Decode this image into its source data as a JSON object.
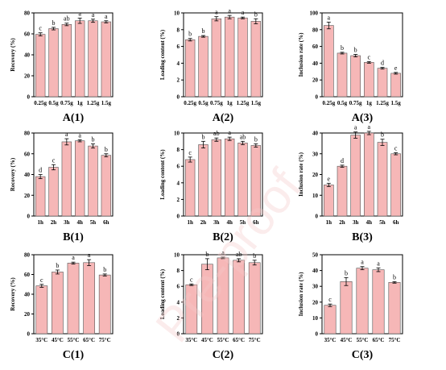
{
  "style": {
    "bar_fill": "#f6b7b7",
    "bar_stroke": "#555555"
  },
  "watermark": "Pre-proof",
  "chart_data": [
    {
      "id": "A1",
      "type": "bar",
      "panel_label": "A(1)",
      "ylabel": "Recovery (%)",
      "ylim": [
        0,
        80
      ],
      "yticks": [
        0,
        20,
        40,
        60,
        80
      ],
      "categories": [
        "0.25g",
        "0.5g",
        "0.75g",
        "1g",
        "1.25g",
        "1.5g"
      ],
      "values": [
        59.5,
        65,
        69,
        72.5,
        72.5,
        71.5
      ],
      "errors": [
        1.5,
        1.2,
        1.2,
        2.5,
        1.5,
        1
      ],
      "letters": [
        "c",
        "b",
        "ab",
        "a",
        "a",
        "a"
      ]
    },
    {
      "id": "A2",
      "type": "bar",
      "panel_label": "A(2)",
      "ylabel": "Loading content (%)",
      "ylim": [
        0,
        10
      ],
      "yticks": [
        0,
        2,
        4,
        6,
        8,
        10
      ],
      "categories": [
        "0.25g",
        "0.5g",
        "0.75g",
        "1g",
        "1.25g",
        "1.5g"
      ],
      "values": [
        6.8,
        7.2,
        9.3,
        9.5,
        9.4,
        9.0
      ],
      "errors": [
        0.15,
        0.1,
        0.25,
        0.2,
        0.1,
        0.3
      ],
      "letters": [
        "b",
        "b",
        "a",
        "a",
        "a",
        "b"
      ]
    },
    {
      "id": "A3",
      "type": "bar",
      "panel_label": "A(3)",
      "ylabel": "Inclusion rate (%)",
      "ylim": [
        0,
        100
      ],
      "yticks": [
        0,
        20,
        40,
        60,
        80,
        100
      ],
      "categories": [
        "0.25g",
        "0.5g",
        "0.75g",
        "1g",
        "1.25g",
        "1.5g"
      ],
      "values": [
        85,
        52,
        49,
        41,
        34,
        28
      ],
      "errors": [
        4,
        1,
        1.5,
        1,
        1,
        1
      ],
      "letters": [
        "a",
        "b",
        "b",
        "c",
        "d",
        "e"
      ]
    },
    {
      "id": "B1",
      "type": "bar",
      "panel_label": "B(1)",
      "ylabel": "Recovery (%)",
      "ylim": [
        0,
        80
      ],
      "yticks": [
        0,
        20,
        40,
        60,
        80
      ],
      "categories": [
        "1h",
        "2h",
        "3h",
        "4h",
        "5h",
        "6h"
      ],
      "values": [
        38,
        47,
        71.5,
        72.5,
        67.5,
        58.5
      ],
      "errors": [
        2,
        2.5,
        3,
        1,
        2,
        1.5
      ],
      "letters": [
        "d",
        "c",
        "a",
        "a",
        "b",
        "b"
      ]
    },
    {
      "id": "B2",
      "type": "bar",
      "panel_label": "B(2)",
      "ylabel": "Loading content (%)",
      "ylim": [
        0,
        10
      ],
      "yticks": [
        0,
        2,
        4,
        6,
        8,
        10
      ],
      "categories": [
        "1h",
        "2h",
        "3h",
        "4h",
        "5h",
        "6h"
      ],
      "values": [
        6.8,
        8.6,
        9.2,
        9.3,
        8.8,
        8.5
      ],
      "errors": [
        0.3,
        0.4,
        0.2,
        0.2,
        0.2,
        0.2
      ],
      "letters": [
        "c",
        "b",
        "ab",
        "a",
        "ab",
        "b"
      ]
    },
    {
      "id": "B3",
      "type": "bar",
      "panel_label": "B(3)",
      "ylabel": "Inclusion rate (%)",
      "ylim": [
        0,
        40
      ],
      "yticks": [
        0,
        10,
        20,
        30,
        40
      ],
      "categories": [
        "1h",
        "2h",
        "3h",
        "4h",
        "5h",
        "6h"
      ],
      "values": [
        15,
        24,
        39,
        40,
        35.5,
        30
      ],
      "errors": [
        0.8,
        0.5,
        1.5,
        0.8,
        1.5,
        0.5
      ],
      "letters": [
        "e",
        "d",
        "a",
        "a",
        "b",
        "c"
      ]
    },
    {
      "id": "C1",
      "type": "bar",
      "panel_label": "C(1)",
      "ylabel": "Recovery (%)",
      "ylim": [
        0,
        80
      ],
      "yticks": [
        0,
        20,
        40,
        60,
        80
      ],
      "categories": [
        "35°C",
        "45°C",
        "55°C",
        "65°C",
        "75°C"
      ],
      "values": [
        48.5,
        62.5,
        71.5,
        72,
        59.5
      ],
      "errors": [
        1.5,
        2,
        1,
        3,
        1
      ],
      "letters": [
        "c",
        "b",
        "a",
        "a",
        "b"
      ]
    },
    {
      "id": "C2",
      "type": "bar",
      "panel_label": "C(2)",
      "ylabel": "Loading content (%)",
      "ylim": [
        0,
        10
      ],
      "yticks": [
        0,
        2,
        4,
        6,
        8,
        10
      ],
      "categories": [
        "35°C",
        "45°C",
        "55°C",
        "65°C",
        "75°C"
      ],
      "values": [
        6.2,
        8.8,
        9.6,
        9.3,
        9.0
      ],
      "errors": [
        0.1,
        0.7,
        0.1,
        0.2,
        0.3
      ],
      "letters": [
        "c",
        "b",
        "a",
        "ab",
        "b"
      ]
    },
    {
      "id": "C3",
      "type": "bar",
      "panel_label": "C(3)",
      "ylabel": "Inclusion rate (%)",
      "ylim": [
        0,
        50
      ],
      "yticks": [
        0,
        10,
        20,
        30,
        40,
        50
      ],
      "categories": [
        "35°C",
        "45°C",
        "55°C",
        "65°C",
        "75°C"
      ],
      "values": [
        18,
        33,
        41.5,
        40.5,
        32.5
      ],
      "errors": [
        0.8,
        2.5,
        1,
        1.2,
        0.5
      ],
      "letters": [
        "c",
        "b",
        "a",
        "a",
        "b"
      ]
    }
  ]
}
